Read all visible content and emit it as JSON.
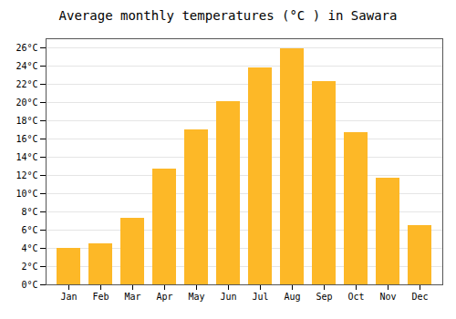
{
  "chart_data": {
    "type": "bar",
    "title": "Average monthly temperatures (°C ) in Sawara",
    "categories": [
      "Jan",
      "Feb",
      "Mar",
      "Apr",
      "May",
      "Jun",
      "Jul",
      "Aug",
      "Sep",
      "Oct",
      "Nov",
      "Dec"
    ],
    "values": [
      4.0,
      4.5,
      7.3,
      12.7,
      17.0,
      20.1,
      23.8,
      25.9,
      22.3,
      16.7,
      11.7,
      6.5
    ],
    "color": "#FDB827",
    "ylim": [
      0,
      27
    ],
    "yticks": [
      {
        "value": 0,
        "label": "0°C"
      },
      {
        "value": 2,
        "label": "2°C"
      },
      {
        "value": 4,
        "label": "4°C"
      },
      {
        "value": 6,
        "label": "6°C"
      },
      {
        "value": 8,
        "label": "8°C"
      },
      {
        "value": 10,
        "label": "10°C"
      },
      {
        "value": 12,
        "label": "12°C"
      },
      {
        "value": 14,
        "label": "14°C"
      },
      {
        "value": 16,
        "label": "16°C"
      },
      {
        "value": 18,
        "label": "18°C"
      },
      {
        "value": 20,
        "label": "20°C"
      },
      {
        "value": 22,
        "label": "22°C"
      },
      {
        "value": 24,
        "label": "24°C"
      },
      {
        "value": 26,
        "label": "26°C"
      }
    ],
    "grid": true
  }
}
